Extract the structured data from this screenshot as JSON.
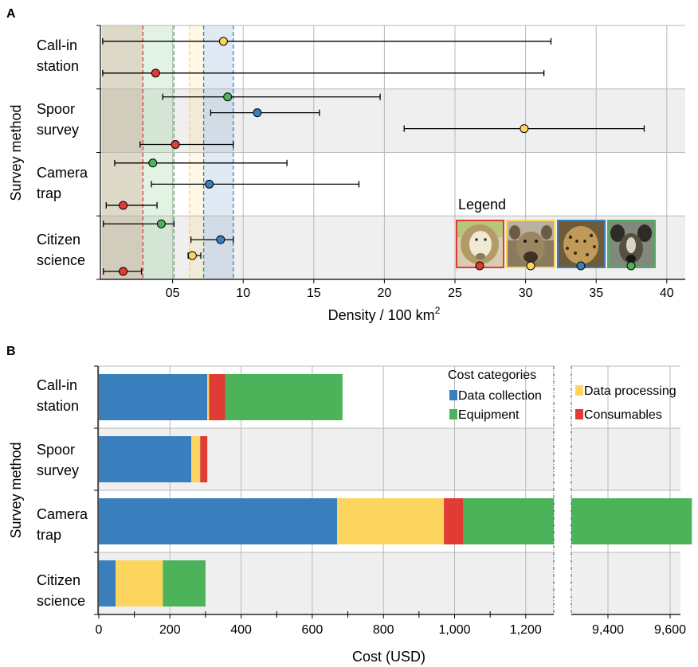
{
  "chart_data": [
    {
      "panel": "A",
      "type": "scatter",
      "subtype": "point-with-error-bars",
      "ylabel": "Survey method",
      "xlabel": "Density / 100 km",
      "xlabel_superscript": "2",
      "xlim": [
        0,
        41
      ],
      "x_ticks": [
        {
          "value": 5,
          "label": "05"
        },
        {
          "value": 10,
          "label": "10"
        },
        {
          "value": 15,
          "label": "15"
        },
        {
          "value": 20,
          "label": "20"
        },
        {
          "value": 25,
          "label": "25"
        },
        {
          "value": 30,
          "label": "30"
        },
        {
          "value": 35,
          "label": "35"
        },
        {
          "value": 40,
          "label": "40"
        }
      ],
      "grid": true,
      "groups": [
        {
          "label": [
            "Call-in",
            "station"
          ],
          "shaded": false
        },
        {
          "label": [
            "Spoor",
            "survey"
          ],
          "shaded": true
        },
        {
          "label": [
            "Camera",
            "trap"
          ],
          "shaded": false
        },
        {
          "label": [
            "Citizen",
            "science"
          ],
          "shaded": true
        }
      ],
      "reference_bands": [
        {
          "species": "lion",
          "min": 0,
          "max": 2.9
        },
        {
          "species": "wild dog",
          "min": 0,
          "max": 5.1
        },
        {
          "species": "hyena",
          "min": 6.2,
          "max": 7.2
        },
        {
          "species": "leopard",
          "min": 7.2,
          "max": 9.3
        }
      ],
      "points": [
        {
          "group": 0,
          "species": "hyena",
          "x": 8.6,
          "low": 0.05,
          "high": 31.8
        },
        {
          "group": 0,
          "species": "lion",
          "x": 3.8,
          "low": 0.05,
          "high": 31.3
        },
        {
          "group": 1,
          "species": "wild dog",
          "x": 8.9,
          "low": 4.3,
          "high": 19.7
        },
        {
          "group": 1,
          "species": "leopard",
          "x": 11.0,
          "low": 7.7,
          "high": 15.4
        },
        {
          "group": 1,
          "species": "hyena",
          "x": 29.9,
          "low": 21.4,
          "high": 38.4
        },
        {
          "group": 1,
          "species": "lion",
          "x": 5.2,
          "low": 2.7,
          "high": 9.3
        },
        {
          "group": 2,
          "species": "wild dog",
          "x": 3.6,
          "low": 0.9,
          "high": 13.1
        },
        {
          "group": 2,
          "species": "leopard",
          "x": 7.6,
          "low": 3.5,
          "high": 18.2
        },
        {
          "group": 2,
          "species": "lion",
          "x": 1.5,
          "low": 0.3,
          "high": 3.9
        },
        {
          "group": 3,
          "species": "wild dog",
          "x": 4.2,
          "low": 0.1,
          "high": 5.1
        },
        {
          "group": 3,
          "species": "leopard",
          "x": 8.4,
          "low": 6.3,
          "high": 9.3
        },
        {
          "group": 3,
          "species": "hyena",
          "x": 6.4,
          "low": 6.1,
          "high": 7.0
        },
        {
          "group": 3,
          "species": "lion",
          "x": 1.5,
          "low": 0.1,
          "high": 2.8
        }
      ],
      "legend": {
        "title": "Legend",
        "placement": "bottom-right",
        "entries": [
          {
            "species": "lion",
            "icon": "lion-portrait-icon"
          },
          {
            "species": "hyena",
            "icon": "hyena-portrait-icon"
          },
          {
            "species": "leopard",
            "icon": "leopard-portrait-icon"
          },
          {
            "species": "wild dog",
            "icon": "wild-dog-portrait-icon"
          }
        ]
      }
    },
    {
      "panel": "B",
      "type": "bar",
      "subtype": "horizontal-stacked-broken-axis",
      "ylabel": "Survey method",
      "xlabel": "Cost (USD)",
      "x_segments": [
        [
          0,
          1280
        ],
        [
          9320,
          9650
        ]
      ],
      "x_ticks": [
        {
          "value": 0,
          "label": "0"
        },
        {
          "value": 200,
          "label": "200"
        },
        {
          "value": 400,
          "label": "400"
        },
        {
          "value": 600,
          "label": "600"
        },
        {
          "value": 800,
          "label": "800"
        },
        {
          "value": 1000,
          "label": "1,000"
        },
        {
          "value": 1200,
          "label": "1,200"
        },
        {
          "value": 9400,
          "label": "9,400"
        },
        {
          "value": 9600,
          "label": "9,600"
        }
      ],
      "grid": true,
      "categories": [
        {
          "label": [
            "Call-in",
            "station"
          ],
          "shaded": false
        },
        {
          "label": [
            "Spoor",
            "survey"
          ],
          "shaded": true
        },
        {
          "label": [
            "Camera",
            "trap"
          ],
          "shaded": false
        },
        {
          "label": [
            "Citizen",
            "science"
          ],
          "shaded": true
        }
      ],
      "series": [
        {
          "name": "Data collection",
          "values": [
            305,
            260,
            670,
            47
          ]
        },
        {
          "name": "Data processing",
          "values": [
            5,
            25,
            300,
            133
          ]
        },
        {
          "name": "Consumables",
          "values": [
            45,
            20,
            55,
            0
          ]
        },
        {
          "name": "Equipment",
          "values": [
            330,
            0,
            8645,
            120
          ]
        }
      ],
      "totals": [
        685,
        305,
        9670,
        300
      ],
      "legend": {
        "title": "Cost categories",
        "placement": "top-right"
      }
    }
  ],
  "panel_labels": [
    "A",
    "B"
  ],
  "species_colors": {
    "lion": "#e03b34",
    "hyena": "#fbd55e",
    "leopard": "#3a7fbd",
    "wild dog": "#4db35a"
  },
  "series_colors": {
    "Data collection": "#3a7fbd",
    "Data processing": "#fbd55e",
    "Consumables": "#e03b34",
    "Equipment": "#4db35a"
  }
}
